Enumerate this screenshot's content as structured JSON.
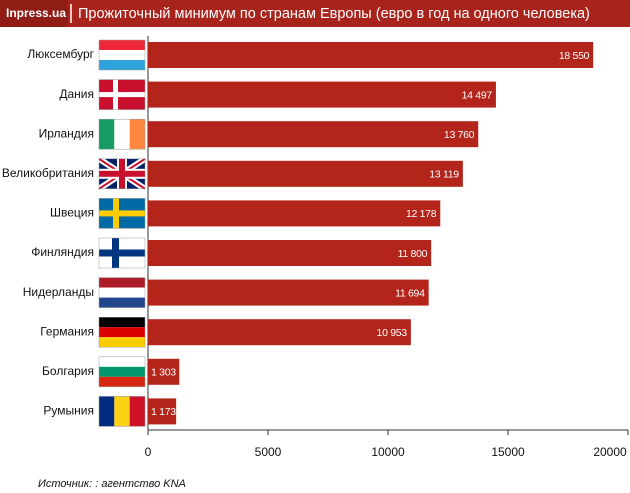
{
  "chart_data": {
    "type": "bar",
    "orientation": "horizontal",
    "brand": "Inpress.ua",
    "title": "Прожиточный минимум по странам Европы (евро в год на одного человека)",
    "categories": [
      "Люксембург",
      "Дания",
      "Ирландия",
      "Великобритания",
      "Швеция",
      "Финляндия",
      "Нидерланды",
      "Германия",
      "Болгария",
      "Румыния"
    ],
    "values": [
      18550,
      14497,
      13760,
      13119,
      12178,
      11800,
      11694,
      10953,
      1303,
      1173
    ],
    "value_labels": [
      "18 550",
      "14 497",
      "13 760",
      "13 119",
      "12 178",
      "11 800",
      "11 694",
      "10 953",
      "1 303",
      "1 173"
    ],
    "color": "#b3241a",
    "xlim": [
      0,
      20000
    ],
    "xticks": [
      0,
      5000,
      10000,
      15000,
      20000
    ],
    "source": "Источник: : агентство KNA"
  }
}
